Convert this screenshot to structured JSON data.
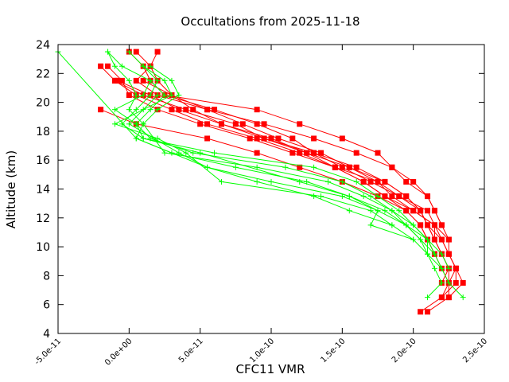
{
  "chart_data": {
    "type": "scatter",
    "title": "Occultations from 2025-11-18",
    "xlabel": "CFC11 VMR",
    "ylabel": "Altitude (km)",
    "xlim": [
      -5e-11,
      2.5e-10
    ],
    "ylim": [
      4,
      24
    ],
    "x_ticks": [
      "-5.0e-11",
      "0.0e+00",
      "5.0e-11",
      "1.0e-10",
      "1.5e-10",
      "2.0e-10",
      "2.5e-10"
    ],
    "x_tick_values": [
      -5e-11,
      0,
      5e-11,
      1e-10,
      1.5e-10,
      2e-10,
      2.5e-10
    ],
    "y_ticks": [
      "4",
      "6",
      "8",
      "10",
      "12",
      "14",
      "16",
      "18",
      "20",
      "22",
      "24"
    ],
    "y_tick_values": [
      4,
      6,
      8,
      10,
      12,
      14,
      16,
      18,
      20,
      22,
      24
    ],
    "colors": {
      "red": "#ff0000",
      "green": "#00ff00",
      "axis": "#000000"
    },
    "series": [
      {
        "name": "red-1",
        "color": "red",
        "marker": "square",
        "points": [
          [
            2e-11,
            23.5
          ],
          [
            1.5e-11,
            22.5
          ],
          [
            5e-12,
            21.5
          ],
          [
            2e-11,
            20.5
          ],
          [
            5.5e-11,
            19.5
          ],
          [
            8e-11,
            18.5
          ],
          [
            1.05e-10,
            17.5
          ],
          [
            1.35e-10,
            16.5
          ],
          [
            1.55e-10,
            15.5
          ],
          [
            1.75e-10,
            14.5
          ],
          [
            1.85e-10,
            13.5
          ],
          [
            2e-10,
            12.5
          ],
          [
            2.15e-10,
            11.5
          ],
          [
            2.25e-10,
            10.5
          ],
          [
            2.25e-10,
            9.5
          ],
          [
            2.3e-10,
            8.5
          ],
          [
            2.3e-10,
            7.5
          ],
          [
            2.2e-10,
            6.5
          ],
          [
            2.05e-10,
            5.5
          ]
        ]
      },
      {
        "name": "red-2",
        "color": "red",
        "marker": "square",
        "points": [
          [
            0.0,
            23.5
          ],
          [
            1e-11,
            22.5
          ],
          [
            1.5e-11,
            21.5
          ],
          [
            2.5e-11,
            20.5
          ],
          [
            6e-11,
            19.5
          ],
          [
            9e-11,
            18.5
          ],
          [
            1.15e-10,
            17.5
          ],
          [
            1.3e-10,
            16.5
          ],
          [
            1.5e-10,
            15.5
          ],
          [
            1.7e-10,
            14.5
          ],
          [
            1.9e-10,
            13.5
          ],
          [
            2.05e-10,
            12.5
          ],
          [
            2.1e-10,
            11.5
          ],
          [
            2.15e-10,
            10.5
          ],
          [
            2.2e-10,
            9.5
          ],
          [
            2.25e-10,
            8.5
          ],
          [
            2.25e-10,
            7.5
          ],
          [
            2.25e-10,
            6.5
          ],
          [
            2.1e-10,
            5.5
          ]
        ]
      },
      {
        "name": "red-3",
        "color": "red",
        "marker": "square",
        "points": [
          [
            -2e-11,
            22.5
          ],
          [
            -1e-11,
            21.5
          ],
          [
            1e-11,
            20.5
          ],
          [
            4e-11,
            19.5
          ],
          [
            7.5e-11,
            18.5
          ],
          [
            9.5e-11,
            17.5
          ],
          [
            1.3e-10,
            16.5
          ],
          [
            1.6e-10,
            15.5
          ],
          [
            1.8e-10,
            14.5
          ],
          [
            1.95e-10,
            13.5
          ],
          [
            2.05e-10,
            12.5
          ],
          [
            2.1e-10,
            11.5
          ],
          [
            2.2e-10,
            10.5
          ],
          [
            2.25e-10,
            9.5
          ],
          [
            2.3e-10,
            8.5
          ],
          [
            2.35e-10,
            7.5
          ],
          [
            2.25e-10,
            6.5
          ]
        ]
      },
      {
        "name": "red-4",
        "color": "red",
        "marker": "square",
        "points": [
          [
            5e-12,
            23.5
          ],
          [
            1.5e-11,
            22.5
          ],
          [
            2e-11,
            21.5
          ],
          [
            3e-11,
            20.5
          ],
          [
            4.5e-11,
            19.5
          ],
          [
            6.5e-11,
            18.5
          ],
          [
            1e-10,
            17.5
          ],
          [
            1.25e-10,
            16.5
          ],
          [
            1.45e-10,
            15.5
          ],
          [
            1.65e-10,
            14.5
          ],
          [
            1.8e-10,
            13.5
          ],
          [
            2e-10,
            12.5
          ],
          [
            2.15e-10,
            11.5
          ],
          [
            2.2e-10,
            10.5
          ],
          [
            2.25e-10,
            9.5
          ],
          [
            2.3e-10,
            8.5
          ],
          [
            2.25e-10,
            7.5
          ],
          [
            2.2e-10,
            6.5
          ]
        ]
      },
      {
        "name": "red-5",
        "color": "red",
        "marker": "square",
        "points": [
          [
            -1.5e-11,
            22.5
          ],
          [
            -5e-12,
            21.5
          ],
          [
            0.0,
            20.5
          ],
          [
            2e-11,
            19.5
          ],
          [
            5e-11,
            18.5
          ],
          [
            8.5e-11,
            17.5
          ],
          [
            1.15e-10,
            16.5
          ],
          [
            1.45e-10,
            15.5
          ],
          [
            1.75e-10,
            14.5
          ],
          [
            1.9e-10,
            13.5
          ],
          [
            2.1e-10,
            12.5
          ],
          [
            2.15e-10,
            11.5
          ],
          [
            2.15e-10,
            10.5
          ],
          [
            2.2e-10,
            9.5
          ],
          [
            2.25e-10,
            8.5
          ],
          [
            2.2e-10,
            7.5
          ]
        ]
      },
      {
        "name": "red-6",
        "color": "red",
        "marker": "square",
        "points": [
          [
            -1e-11,
            21.5
          ],
          [
            5e-12,
            20.5
          ],
          [
            3e-11,
            19.5
          ],
          [
            5.5e-11,
            18.5
          ],
          [
            9e-11,
            17.5
          ],
          [
            1.2e-10,
            16.5
          ],
          [
            1.45e-10,
            15.5
          ],
          [
            1.65e-10,
            14.5
          ],
          [
            1.8e-10,
            13.5
          ],
          [
            1.95e-10,
            12.5
          ],
          [
            2.05e-10,
            11.5
          ],
          [
            2.1e-10,
            10.5
          ],
          [
            2.15e-10,
            9.5
          ],
          [
            2.2e-10,
            8.5
          ],
          [
            2.25e-10,
            7.5
          ]
        ]
      },
      {
        "name": "red-7",
        "color": "red",
        "marker": "square",
        "points": [
          [
            -8e-12,
            21.5
          ],
          [
            1.5e-11,
            20.5
          ],
          [
            3.5e-11,
            19.5
          ],
          [
            6.5e-11,
            18.5
          ],
          [
            9.5e-11,
            17.5
          ],
          [
            1.25e-10,
            16.5
          ],
          [
            1.55e-10,
            15.5
          ],
          [
            1.8e-10,
            14.5
          ],
          [
            1.95e-10,
            13.5
          ],
          [
            2.05e-10,
            12.5
          ],
          [
            2.1e-10,
            11.5
          ],
          [
            2.15e-10,
            10.5
          ]
        ]
      },
      {
        "name": "red-8",
        "color": "red",
        "marker": "square",
        "points": [
          [
            -2e-11,
            19.5
          ],
          [
            5e-12,
            18.5
          ],
          [
            5.5e-11,
            17.5
          ],
          [
            9e-11,
            16.5
          ],
          [
            1.2e-10,
            15.5
          ],
          [
            1.5e-10,
            14.5
          ],
          [
            1.75e-10,
            13.5
          ],
          [
            1.95e-10,
            12.5
          ],
          [
            2.05e-10,
            11.5
          ],
          [
            2.1e-10,
            10.5
          ],
          [
            2.15e-10,
            9.5
          ]
        ]
      },
      {
        "name": "red-9",
        "color": "red",
        "marker": "square",
        "points": [
          [
            2.5e-11,
            20.5
          ],
          [
            9e-11,
            19.5
          ],
          [
            1.2e-10,
            18.5
          ],
          [
            1.5e-10,
            17.5
          ],
          [
            1.75e-10,
            16.5
          ],
          [
            1.85e-10,
            15.5
          ],
          [
            2e-10,
            14.5
          ],
          [
            2.1e-10,
            13.5
          ],
          [
            2.15e-10,
            12.5
          ],
          [
            2.2e-10,
            11.5
          ],
          [
            2.25e-10,
            10.5
          ]
        ]
      },
      {
        "name": "red-10",
        "color": "red",
        "marker": "square",
        "points": [
          [
            1e-11,
            21.5
          ],
          [
            3e-11,
            20.5
          ],
          [
            5.5e-11,
            19.5
          ],
          [
            9.5e-11,
            18.5
          ],
          [
            1.3e-10,
            17.5
          ],
          [
            1.6e-10,
            16.5
          ],
          [
            1.85e-10,
            15.5
          ],
          [
            1.95e-10,
            14.5
          ],
          [
            2.1e-10,
            13.5
          ],
          [
            2.15e-10,
            12.5
          ],
          [
            2.2e-10,
            11.5
          ]
        ]
      },
      {
        "name": "green-1",
        "color": "green",
        "marker": "plus",
        "points": [
          [
            -5e-11,
            23.5
          ],
          [
            5e-12,
            17.5
          ],
          [
            5.5e-11,
            15.5
          ],
          [
            1e-10,
            14.5
          ],
          [
            1.5e-10,
            13.5
          ],
          [
            1.75e-10,
            12.5
          ],
          [
            1.95e-10,
            11.5
          ],
          [
            2.1e-10,
            10.5
          ],
          [
            2.15e-10,
            9.5
          ],
          [
            2.2e-10,
            8.5
          ],
          [
            2.25e-10,
            7.5
          ],
          [
            2.35e-10,
            6.5
          ]
        ]
      },
      {
        "name": "green-2",
        "color": "green",
        "marker": "plus",
        "points": [
          [
            -1.5e-11,
            23.5
          ],
          [
            -1e-11,
            22.5
          ],
          [
            0.0,
            21.5
          ],
          [
            5e-12,
            20.5
          ],
          [
            0.0,
            19.5
          ],
          [
            1e-11,
            18.5
          ],
          [
            2.5e-11,
            16.5
          ],
          [
            9e-11,
            15.5
          ],
          [
            1.4e-10,
            14.5
          ],
          [
            1.65e-10,
            13.5
          ],
          [
            1.85e-10,
            12.5
          ],
          [
            2e-10,
            11.5
          ],
          [
            2.1e-10,
            10.5
          ],
          [
            2.2e-10,
            9.5
          ],
          [
            2.25e-10,
            8.5
          ]
        ]
      },
      {
        "name": "green-3",
        "color": "green",
        "marker": "plus",
        "points": [
          [
            -1.5e-11,
            23.5
          ],
          [
            -5e-12,
            22.5
          ],
          [
            1.5e-11,
            21.5
          ],
          [
            2.5e-11,
            20.5
          ],
          [
            1.5e-11,
            19.5
          ],
          [
            5e-12,
            18.5
          ],
          [
            1.5e-11,
            17.5
          ],
          [
            4.5e-11,
            16.5
          ],
          [
            1.1e-10,
            15.5
          ],
          [
            1.5e-10,
            14.5
          ],
          [
            1.7e-10,
            13.5
          ],
          [
            1.85e-10,
            12.5
          ],
          [
            1.95e-10,
            11.5
          ],
          [
            2.05e-10,
            10.5
          ],
          [
            2.15e-10,
            9.5
          ]
        ]
      },
      {
        "name": "green-4",
        "color": "green",
        "marker": "plus",
        "points": [
          [
            0.0,
            23.5
          ],
          [
            1e-11,
            22.5
          ],
          [
            2e-11,
            21.5
          ],
          [
            1.5e-11,
            20.5
          ],
          [
            5e-12,
            19.5
          ],
          [
            -5e-12,
            18.5
          ],
          [
            1e-11,
            17.5
          ],
          [
            6e-11,
            16.5
          ],
          [
            1.3e-10,
            15.5
          ],
          [
            1.6e-10,
            14.5
          ],
          [
            1.75e-10,
            13.5
          ],
          [
            1.9e-10,
            12.5
          ],
          [
            2e-10,
            11.5
          ],
          [
            2.1e-10,
            10.5
          ],
          [
            2.1e-10,
            9.5
          ],
          [
            2.15e-10,
            8.5
          ],
          [
            2.2e-10,
            7.5
          ],
          [
            2.1e-10,
            6.5
          ]
        ]
      },
      {
        "name": "green-5",
        "color": "green",
        "marker": "plus",
        "points": [
          [
            1.5e-11,
            22.5
          ],
          [
            3e-11,
            21.5
          ],
          [
            3.5e-11,
            20.5
          ],
          [
            2e-11,
            19.5
          ],
          [
            1e-11,
            18.5
          ],
          [
            5e-12,
            17.5
          ],
          [
            3e-11,
            16.5
          ],
          [
            7.5e-11,
            15.5
          ],
          [
            1.25e-10,
            14.5
          ],
          [
            1.55e-10,
            13.5
          ],
          [
            1.8e-10,
            12.5
          ],
          [
            1.95e-10,
            11.5
          ],
          [
            2.05e-10,
            10.5
          ],
          [
            2.1e-10,
            9.5
          ],
          [
            2.2e-10,
            8.5
          ]
        ]
      },
      {
        "name": "green-6",
        "color": "green",
        "marker": "plus",
        "points": [
          [
            1e-11,
            22.5
          ],
          [
            2.5e-11,
            21.5
          ],
          [
            3e-11,
            20.5
          ],
          [
            1e-11,
            19.5
          ],
          [
            -1e-11,
            18.5
          ],
          [
            2e-11,
            17.5
          ],
          [
            4e-11,
            16.5
          ],
          [
            6.5e-11,
            14.5
          ],
          [
            1.35e-10,
            13.5
          ],
          [
            1.7e-10,
            12.5
          ],
          [
            1.85e-10,
            11.5
          ],
          [
            2e-10,
            10.5
          ],
          [
            2.1e-10,
            9.5
          ]
        ]
      },
      {
        "name": "green-7",
        "color": "green",
        "marker": "plus",
        "points": [
          [
            1.5e-11,
            21.5
          ],
          [
            1e-11,
            20.5
          ],
          [
            -1e-11,
            19.5
          ],
          [
            5e-12,
            18.5
          ],
          [
            1e-11,
            17.5
          ],
          [
            5e-11,
            16.5
          ],
          [
            1.2e-10,
            14.5
          ],
          [
            1.55e-10,
            13.5
          ],
          [
            1.75e-10,
            12.5
          ],
          [
            1.7e-10,
            11.5
          ],
          [
            2e-10,
            10.5
          ]
        ]
      },
      {
        "name": "green-8",
        "color": "green",
        "marker": "plus",
        "points": [
          [
            2e-11,
            20.5
          ],
          [
            0.0,
            18.5
          ],
          [
            3.5e-11,
            16.5
          ],
          [
            5.5e-11,
            15.5
          ],
          [
            9e-11,
            14.5
          ],
          [
            1.3e-10,
            13.5
          ],
          [
            1.55e-10,
            12.5
          ],
          [
            1.85e-10,
            11.5
          ]
        ]
      }
    ]
  }
}
